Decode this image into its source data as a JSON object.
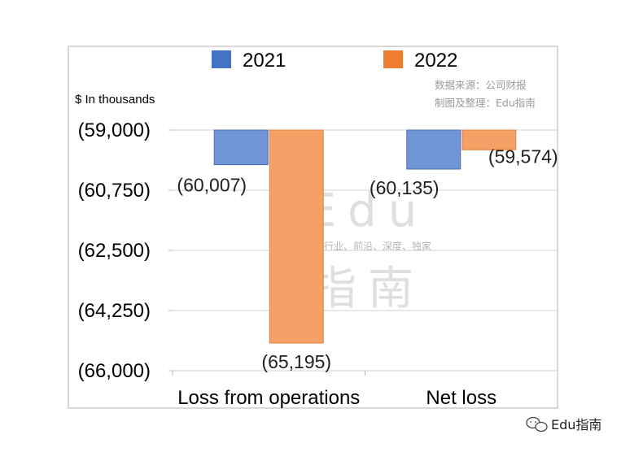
{
  "chart_data": {
    "type": "bar",
    "unit_label": "$ In thousands",
    "categories": [
      "Loss from operations",
      "Net loss"
    ],
    "series": [
      {
        "name": "2021",
        "color": "#4472C4",
        "values": [
          -60007,
          -60135
        ],
        "labels": [
          "(60,007)",
          "(60,135)"
        ]
      },
      {
        "name": "2022",
        "color": "#ED7D31",
        "values": [
          -65195,
          -59574
        ],
        "labels": [
          "(65,195)",
          "(59,574)"
        ]
      }
    ],
    "y_ticks": [
      {
        "value": -59000,
        "label": "(59,000)"
      },
      {
        "value": -60750,
        "label": "(60,750)"
      },
      {
        "value": -62500,
        "label": "(62,500)"
      },
      {
        "value": -64250,
        "label": "(64,250)"
      },
      {
        "value": -66000,
        "label": "(66,000)"
      }
    ],
    "ylim": [
      -66000,
      -59000
    ],
    "grid": true,
    "legend_position": "top"
  },
  "source_lines": [
    "数据来源：公司财报",
    "制图及整理：Edu指南"
  ],
  "watermark": {
    "big_top": "Edu",
    "tagline": "教育行业、前沿、深度、独家",
    "big_bottom": "指南"
  },
  "footer_brand": "Edu指南"
}
